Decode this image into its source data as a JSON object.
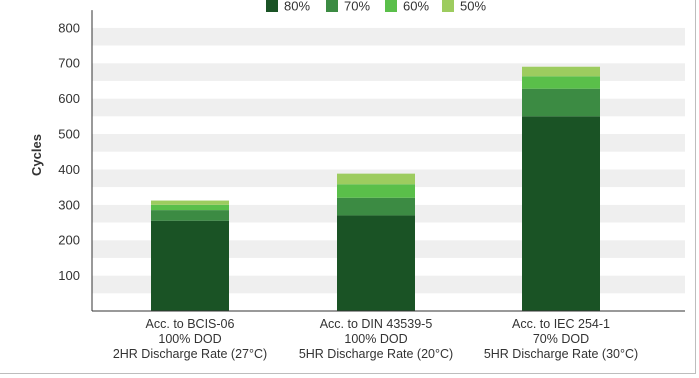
{
  "chart_data": {
    "type": "bar",
    "stacked": true,
    "ylabel": "Cycles",
    "ylim": [
      0,
      850
    ],
    "yticks": [
      100,
      200,
      300,
      400,
      500,
      600,
      700,
      800
    ],
    "grid": "alternating horizontal bands",
    "legend": "top-center",
    "categories": [
      [
        "Acc. to BCIS-06",
        "100% DOD",
        "2HR Discharge Rate (27°C)"
      ],
      [
        "Acc. to DIN 43539-5",
        "100% DOD",
        "5HR Discharge Rate (20°C)"
      ],
      [
        "Acc. to IEC 254-1",
        "70% DOD",
        "5HR Discharge Rate (30°C)"
      ]
    ],
    "series": [
      {
        "name": "80%",
        "color": "#1a5325",
        "values": [
          255,
          270,
          550
        ]
      },
      {
        "name": "70%",
        "color": "#3c8b43",
        "values": [
          30,
          50,
          78
        ]
      },
      {
        "name": "60%",
        "color": "#5abf4a",
        "values": [
          15,
          38,
          35
        ]
      },
      {
        "name": "50%",
        "color": "#9dcc5f",
        "values": [
          12,
          30,
          27
        ]
      }
    ]
  }
}
